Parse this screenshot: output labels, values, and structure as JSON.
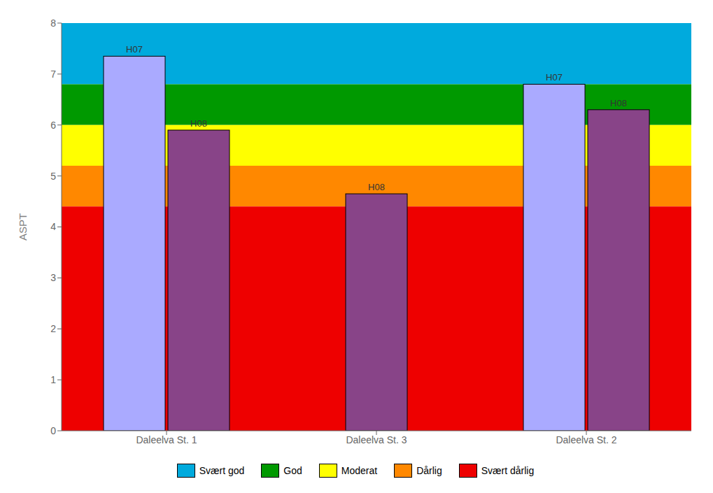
{
  "chart_data": {
    "type": "bar",
    "categories": [
      "Daleelva St. 1",
      "Daleelva St. 3",
      "Daleelva St. 2"
    ],
    "series": [
      {
        "name": "H07",
        "color": "#AAAAFF",
        "values": [
          7.35,
          null,
          6.8
        ]
      },
      {
        "name": "H08",
        "color": "#884488",
        "values": [
          5.9,
          4.65,
          6.3
        ]
      }
    ],
    "ylabel": "ASPT",
    "ylim": [
      0,
      8
    ],
    "yticks": [
      0,
      1,
      2,
      3,
      4,
      5,
      6,
      7,
      8
    ],
    "grid": false,
    "legend": "bottom",
    "bands": [
      {
        "label": "Svært god",
        "color": "#00AADD",
        "ymin": 6.8,
        "ymax": 8.0
      },
      {
        "label": "God",
        "color": "#009900",
        "ymin": 6.0,
        "ymax": 6.8
      },
      {
        "label": "Moderat",
        "color": "#FFFF00",
        "ymin": 5.2,
        "ymax": 6.0
      },
      {
        "label": "Dårlig",
        "color": "#FF8800",
        "ymin": 4.4,
        "ymax": 5.2
      },
      {
        "label": "Svært dårlig",
        "color": "#EE0000",
        "ymin": 0,
        "ymax": 4.4
      }
    ]
  }
}
